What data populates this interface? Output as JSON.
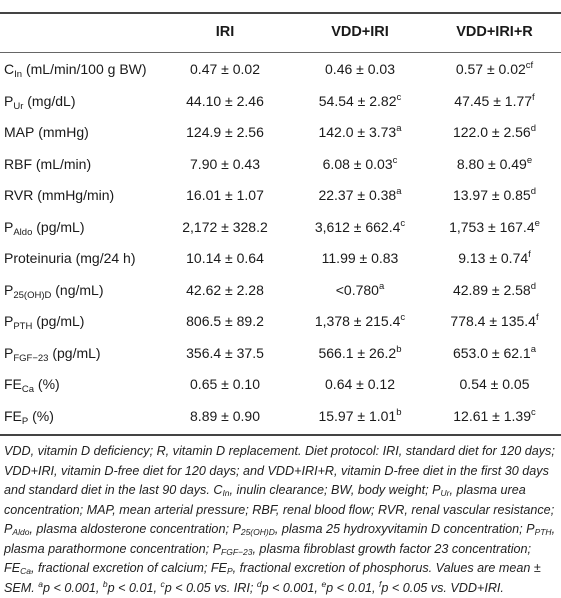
{
  "header": {
    "col1": "IRI",
    "col2": "VDD+IRI",
    "col3": "VDD+IRI+R"
  },
  "rows": [
    {
      "sym": "C",
      "sub": "In",
      "rest": " (mL/min/100 g BW)",
      "v1": "0.47 ± 0.02",
      "s1": "",
      "v2": "0.46 ± 0.03",
      "s2": "",
      "v3": "0.57 ± 0.02",
      "s3": "cf"
    },
    {
      "sym": "P",
      "sub": "Ur",
      "rest": " (mg/dL)",
      "v1": "44.10 ± 2.46",
      "s1": "",
      "v2": "54.54 ± 2.82",
      "s2": "c",
      "v3": "47.45 ± 1.77",
      "s3": "f"
    },
    {
      "sym": "MAP",
      "sub": "",
      "rest": " (mmHg)",
      "v1": "124.9 ± 2.56",
      "s1": "",
      "v2": "142.0 ± 3.73",
      "s2": "a",
      "v3": "122.0 ± 2.56",
      "s3": "d"
    },
    {
      "sym": "RBF",
      "sub": "",
      "rest": " (mL/min)",
      "v1": "7.90 ± 0.43",
      "s1": "",
      "v2": "6.08 ± 0.03",
      "s2": "c",
      "v3": "8.80 ± 0.49",
      "s3": "e"
    },
    {
      "sym": "RVR",
      "sub": "",
      "rest": " (mmHg/min)",
      "v1": "16.01 ± 1.07",
      "s1": "",
      "v2": "22.37 ± 0.38",
      "s2": "a",
      "v3": "13.97 ± 0.85",
      "s3": "d"
    },
    {
      "sym": "P",
      "sub": "Aldo",
      "rest": " (pg/mL)",
      "v1": "2,172 ± 328.2",
      "s1": "",
      "v2": "3,612 ± 662.4",
      "s2": "c",
      "v3": "1,753 ± 167.4",
      "s3": "e"
    },
    {
      "sym": "Proteinuria",
      "sub": "",
      "rest": " (mg/24 h)",
      "v1": "10.14 ± 0.64",
      "s1": "",
      "v2": "11.99 ± 0.83",
      "s2": "",
      "v3": "9.13 ± 0.74",
      "s3": "f"
    },
    {
      "sym": "P",
      "sub": "25(OH)D",
      "rest": " (ng/mL)",
      "v1": "42.62 ± 2.28",
      "s1": "",
      "v2": "<0.780",
      "s2": "a",
      "v3": "42.89 ± 2.58",
      "s3": "d"
    },
    {
      "sym": "P",
      "sub": "PTH",
      "rest": " (pg/mL)",
      "v1": "806.5 ± 89.2",
      "s1": "",
      "v2": "1,378 ± 215.4",
      "s2": "c",
      "v3": "778.4 ± 135.4",
      "s3": "f"
    },
    {
      "sym": "P",
      "sub": "FGF−23",
      "rest": " (pg/mL)",
      "v1": "356.4 ± 37.5",
      "s1": "",
      "v2": "566.1 ± 26.2",
      "s2": "b",
      "v3": "653.0 ± 62.1",
      "s3": "a"
    },
    {
      "sym": "FE",
      "sub": "Ca",
      "rest": " (%)",
      "v1": "0.65 ± 0.10",
      "s1": "",
      "v2": "0.64 ± 0.12",
      "s2": "",
      "v3": "0.54 ± 0.05",
      "s3": ""
    },
    {
      "sym": "FE",
      "sub": "P",
      "rest": " (%)",
      "v1": "8.89 ± 0.90",
      "s1": "",
      "v2": "15.97 ± 1.01",
      "s2": "b",
      "v3": "12.61 ± 1.39",
      "s3": "c"
    }
  ],
  "footnote": {
    "t1": "VDD, vitamin D deficiency; R, vitamin D replacement. Diet protocol: IRI, standard diet for 120 days; VDD+IRI, vitamin D-free diet for 120 days; and VDD+IRI+R, vitamin D-free diet in the first 30 days and standard diet in the last 90 days. C",
    "t1sub": "In",
    "t2": ", inulin clearance; BW, body weight; P",
    "t2sub": "Ur",
    "t3": ", plasma urea concentration; MAP, mean arterial pressure; RBF, renal blood flow; RVR, renal vascular resistance; P",
    "t3sub": "Aldo",
    "t4": ", plasma aldosterone concentration; P",
    "t4sub": "25(OH)D",
    "t5": ", plasma 25 hydroxyvitamin D concentration; P",
    "t5sub": "PTH",
    "t6": ", plasma parathormone concentration; P",
    "t6sub": "FGF−23",
    "t7": ", plasma fibroblast growth factor 23 concentration; FE",
    "t7sub": "Ca",
    "t8": ", fractional excretion of calcium; FE",
    "t8sub": "P",
    "t9": ", fractional excretion of phosphorus. Values are mean ± SEM. ",
    "sa": "a",
    "t10": "p < 0.001, ",
    "sb": "b",
    "t11": "p < 0.01, ",
    "sc": "c",
    "t12": "p < 0.05 vs. IRI; ",
    "sd": "d",
    "t13": "p < 0.001, ",
    "se": "e",
    "t14": "p < 0.01, ",
    "sf": "f",
    "t15": "p < 0.05 vs. VDD+IRI."
  }
}
